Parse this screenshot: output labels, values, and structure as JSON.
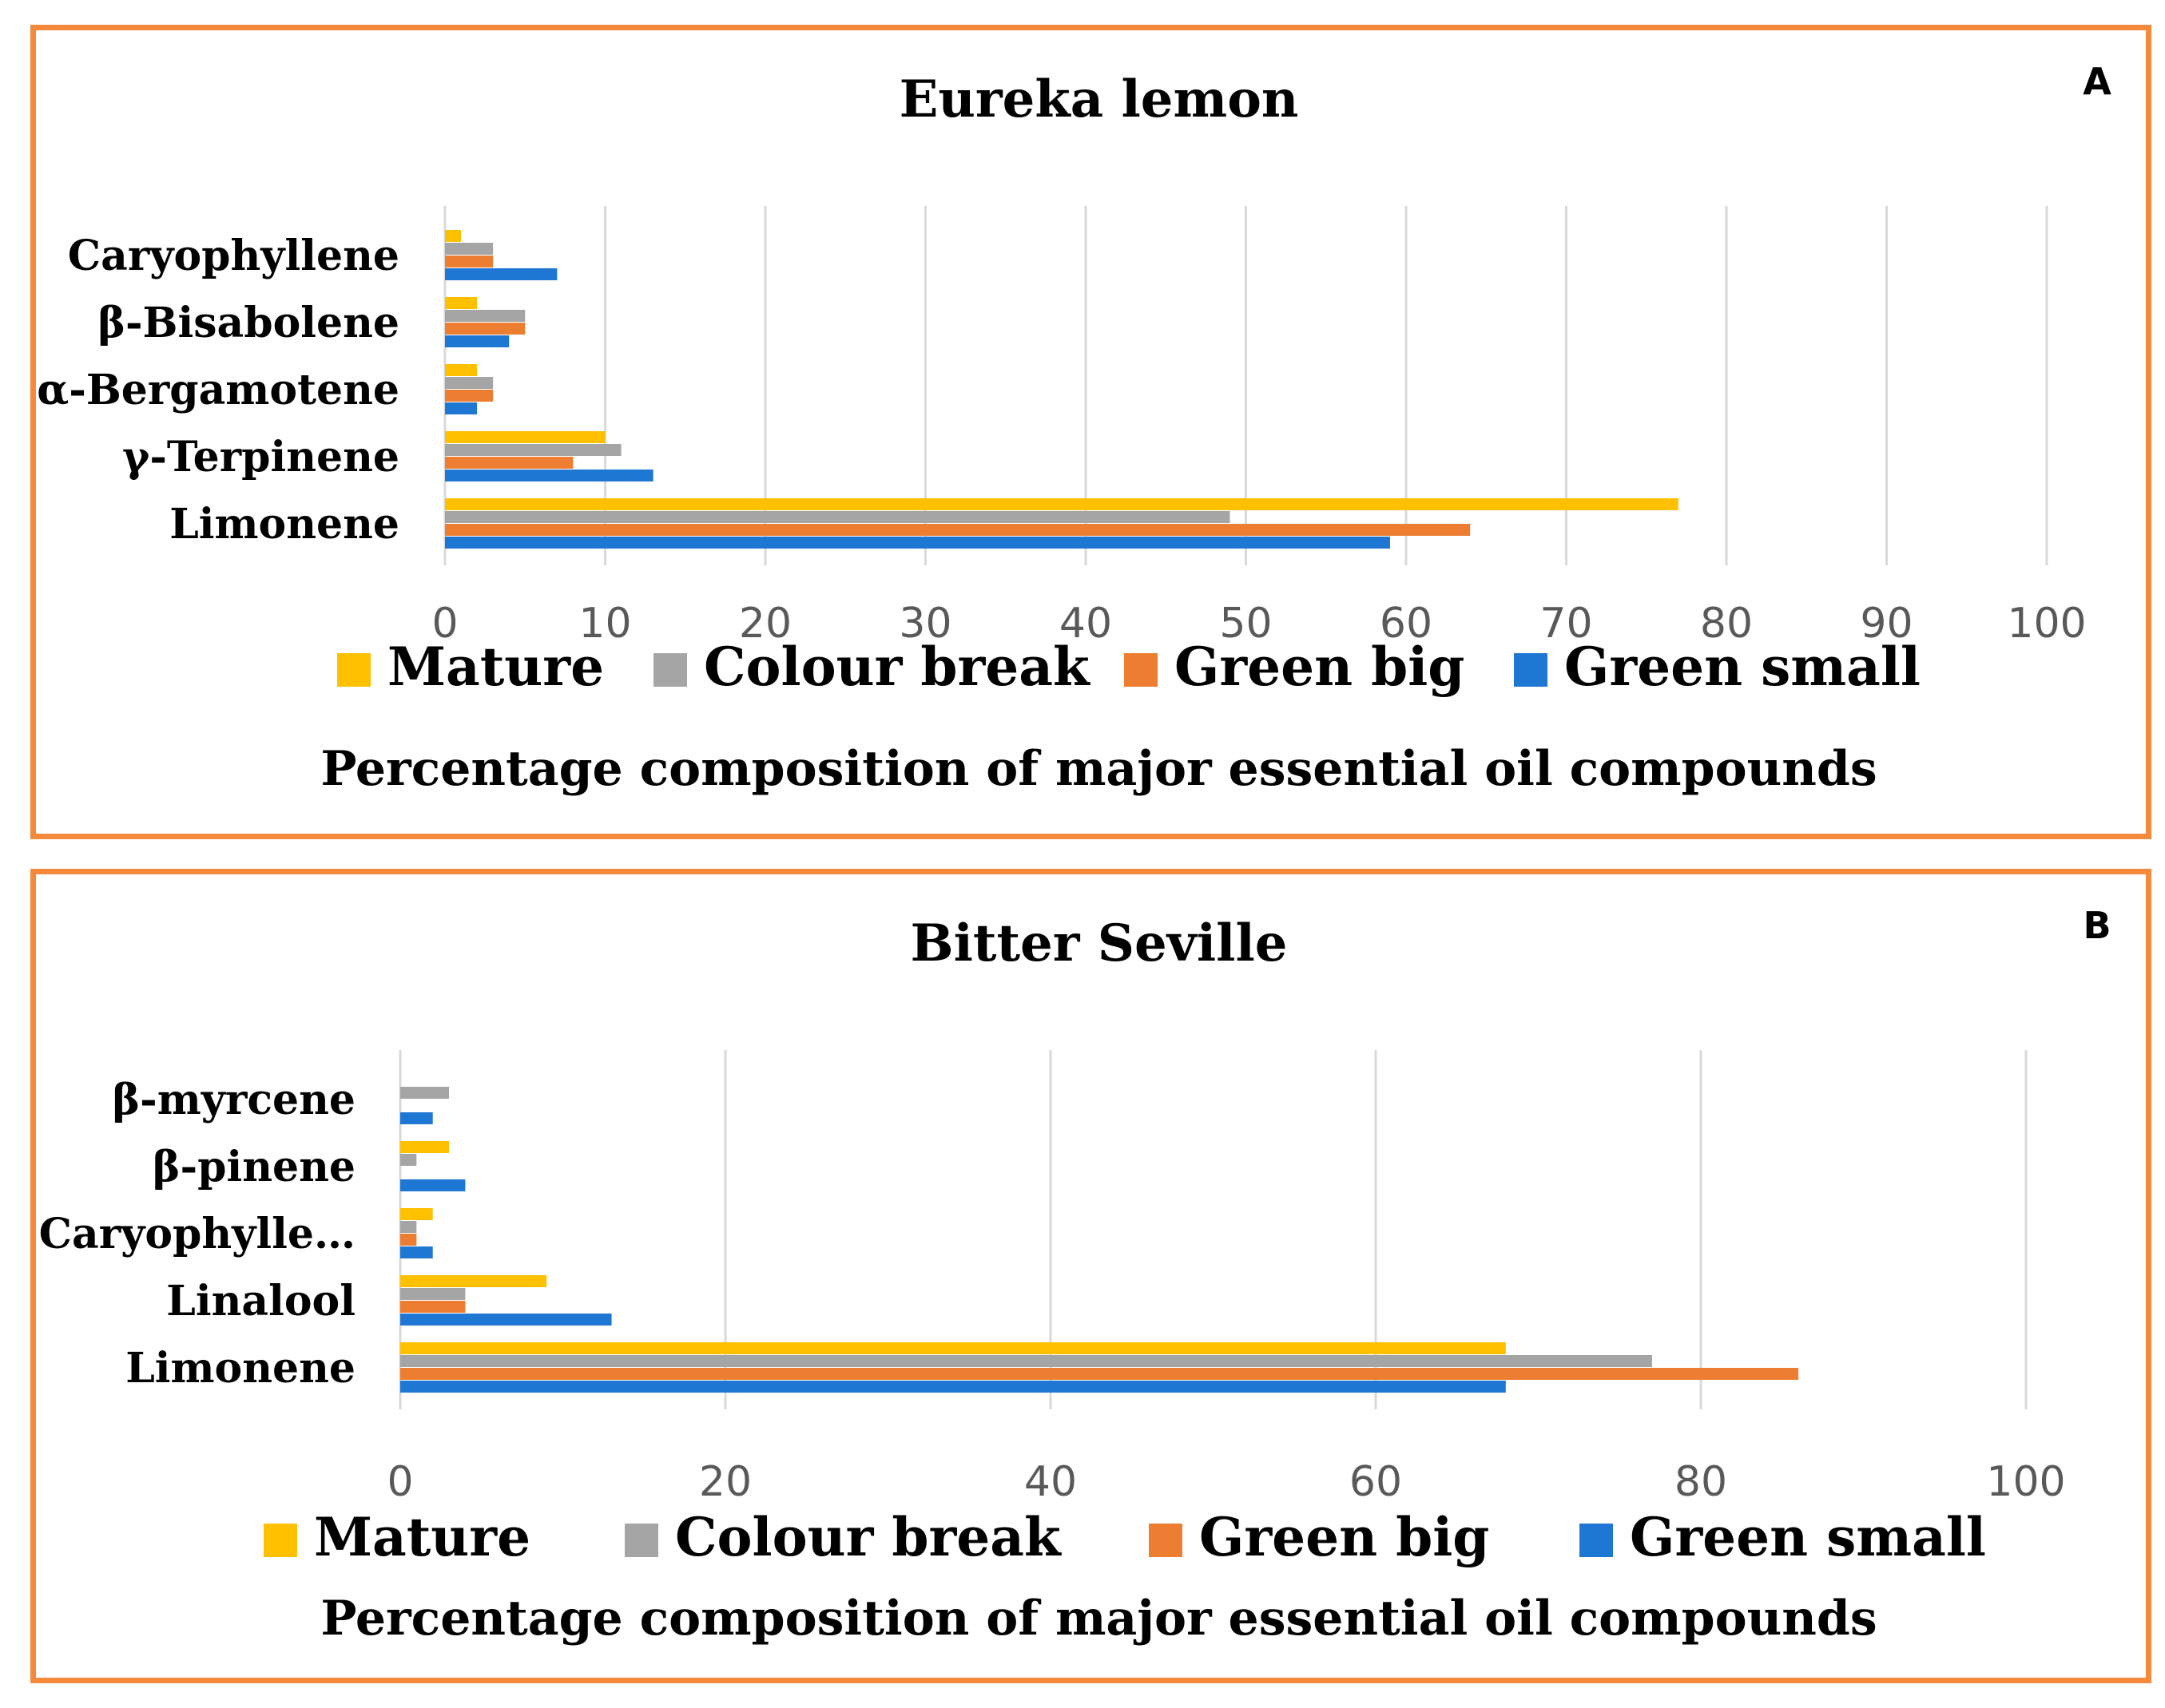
{
  "chart_data": [
    {
      "type": "bar",
      "orientation": "horizontal",
      "panel_label": "A",
      "title": "Eureka lemon",
      "xlabel": "Percentage composition of major essential oil compounds",
      "ylabel": "",
      "categories": [
        "Limonene",
        "γ-Terpinene",
        "α-Bergamotene",
        "β-Bisabolene",
        "Caryophyllene"
      ],
      "series": [
        {
          "name": "Mature",
          "color": "#ffc000",
          "values": [
            77,
            10,
            2,
            2,
            1
          ]
        },
        {
          "name": "Colour break",
          "color": "#a5a5a5",
          "values": [
            49,
            11,
            3,
            5,
            3
          ]
        },
        {
          "name": "Green big",
          "color": "#ed7d31",
          "values": [
            64,
            8,
            3,
            5,
            3
          ]
        },
        {
          "name": "Green small",
          "color": "#1f77d4",
          "values": [
            59,
            13,
            2,
            4,
            7
          ]
        }
      ],
      "xlim": [
        0,
        100
      ],
      "xticks": [
        "0",
        "10",
        "20",
        "30",
        "40",
        "50",
        "60",
        "70",
        "80",
        "90",
        "100"
      ],
      "grid": "vertical",
      "legend_position": "bottom"
    },
    {
      "type": "bar",
      "orientation": "horizontal",
      "panel_label": "B",
      "title": "Bitter Seville",
      "xlabel": "Percentage composition of major essential oil compounds",
      "ylabel": "",
      "categories": [
        "Limonene",
        "Linalool",
        "Caryophylle…",
        "β-pinene",
        "β-myrcene"
      ],
      "series": [
        {
          "name": "Mature",
          "color": "#ffc000",
          "values": [
            68,
            9,
            2,
            3,
            0
          ]
        },
        {
          "name": "Colour break",
          "color": "#a5a5a5",
          "values": [
            77,
            4,
            1,
            1,
            3
          ]
        },
        {
          "name": "Green big",
          "color": "#ed7d31",
          "values": [
            86,
            4,
            1,
            0,
            0
          ]
        },
        {
          "name": "Green small",
          "color": "#1f77d4",
          "values": [
            68,
            13,
            2,
            4,
            2
          ]
        }
      ],
      "xlim": [
        0,
        100
      ],
      "xticks": [
        "0",
        "20",
        "40",
        "60",
        "80",
        "100"
      ],
      "grid": "vertical",
      "legend_position": "bottom"
    }
  ]
}
